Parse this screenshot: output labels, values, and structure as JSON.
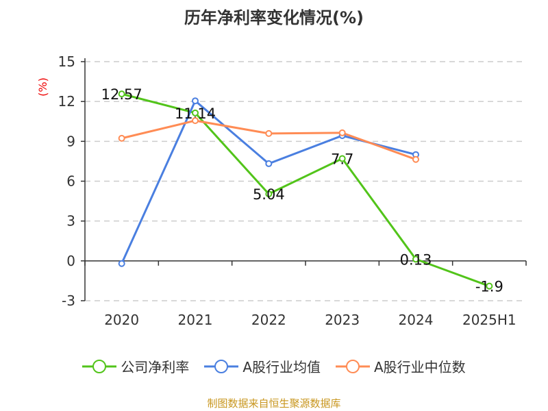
{
  "title": "历年净利率变化情况(%)",
  "source": "制图数据来自恒生聚源数据库",
  "chart_data": {
    "type": "line",
    "title": "历年净利率变化情况(%)",
    "ylabel": "(%)",
    "categories": [
      "2020",
      "2021",
      "2022",
      "2023",
      "2024",
      "2025H1"
    ],
    "ylim": [
      -3,
      15
    ],
    "yticks": [
      -3,
      0,
      3,
      6,
      9,
      12,
      15
    ],
    "grid": true,
    "legend_position": "bottom",
    "series": [
      {
        "name": "公司净利率",
        "color": "#52c41a",
        "values": [
          12.57,
          11.14,
          5.04,
          7.7,
          0.13,
          -1.9
        ],
        "labels": [
          "12.57",
          "11.14",
          "5.04",
          "7.7",
          "0.13",
          "-1.9"
        ]
      },
      {
        "name": "A股行业均值",
        "color": "#4a7fe0",
        "values": [
          -0.2,
          12.05,
          7.32,
          9.43,
          8.0,
          null
        ]
      },
      {
        "name": "A股行业中位数",
        "color": "#ff8c55",
        "values": [
          9.23,
          10.56,
          9.59,
          9.64,
          7.64,
          null
        ]
      }
    ]
  }
}
